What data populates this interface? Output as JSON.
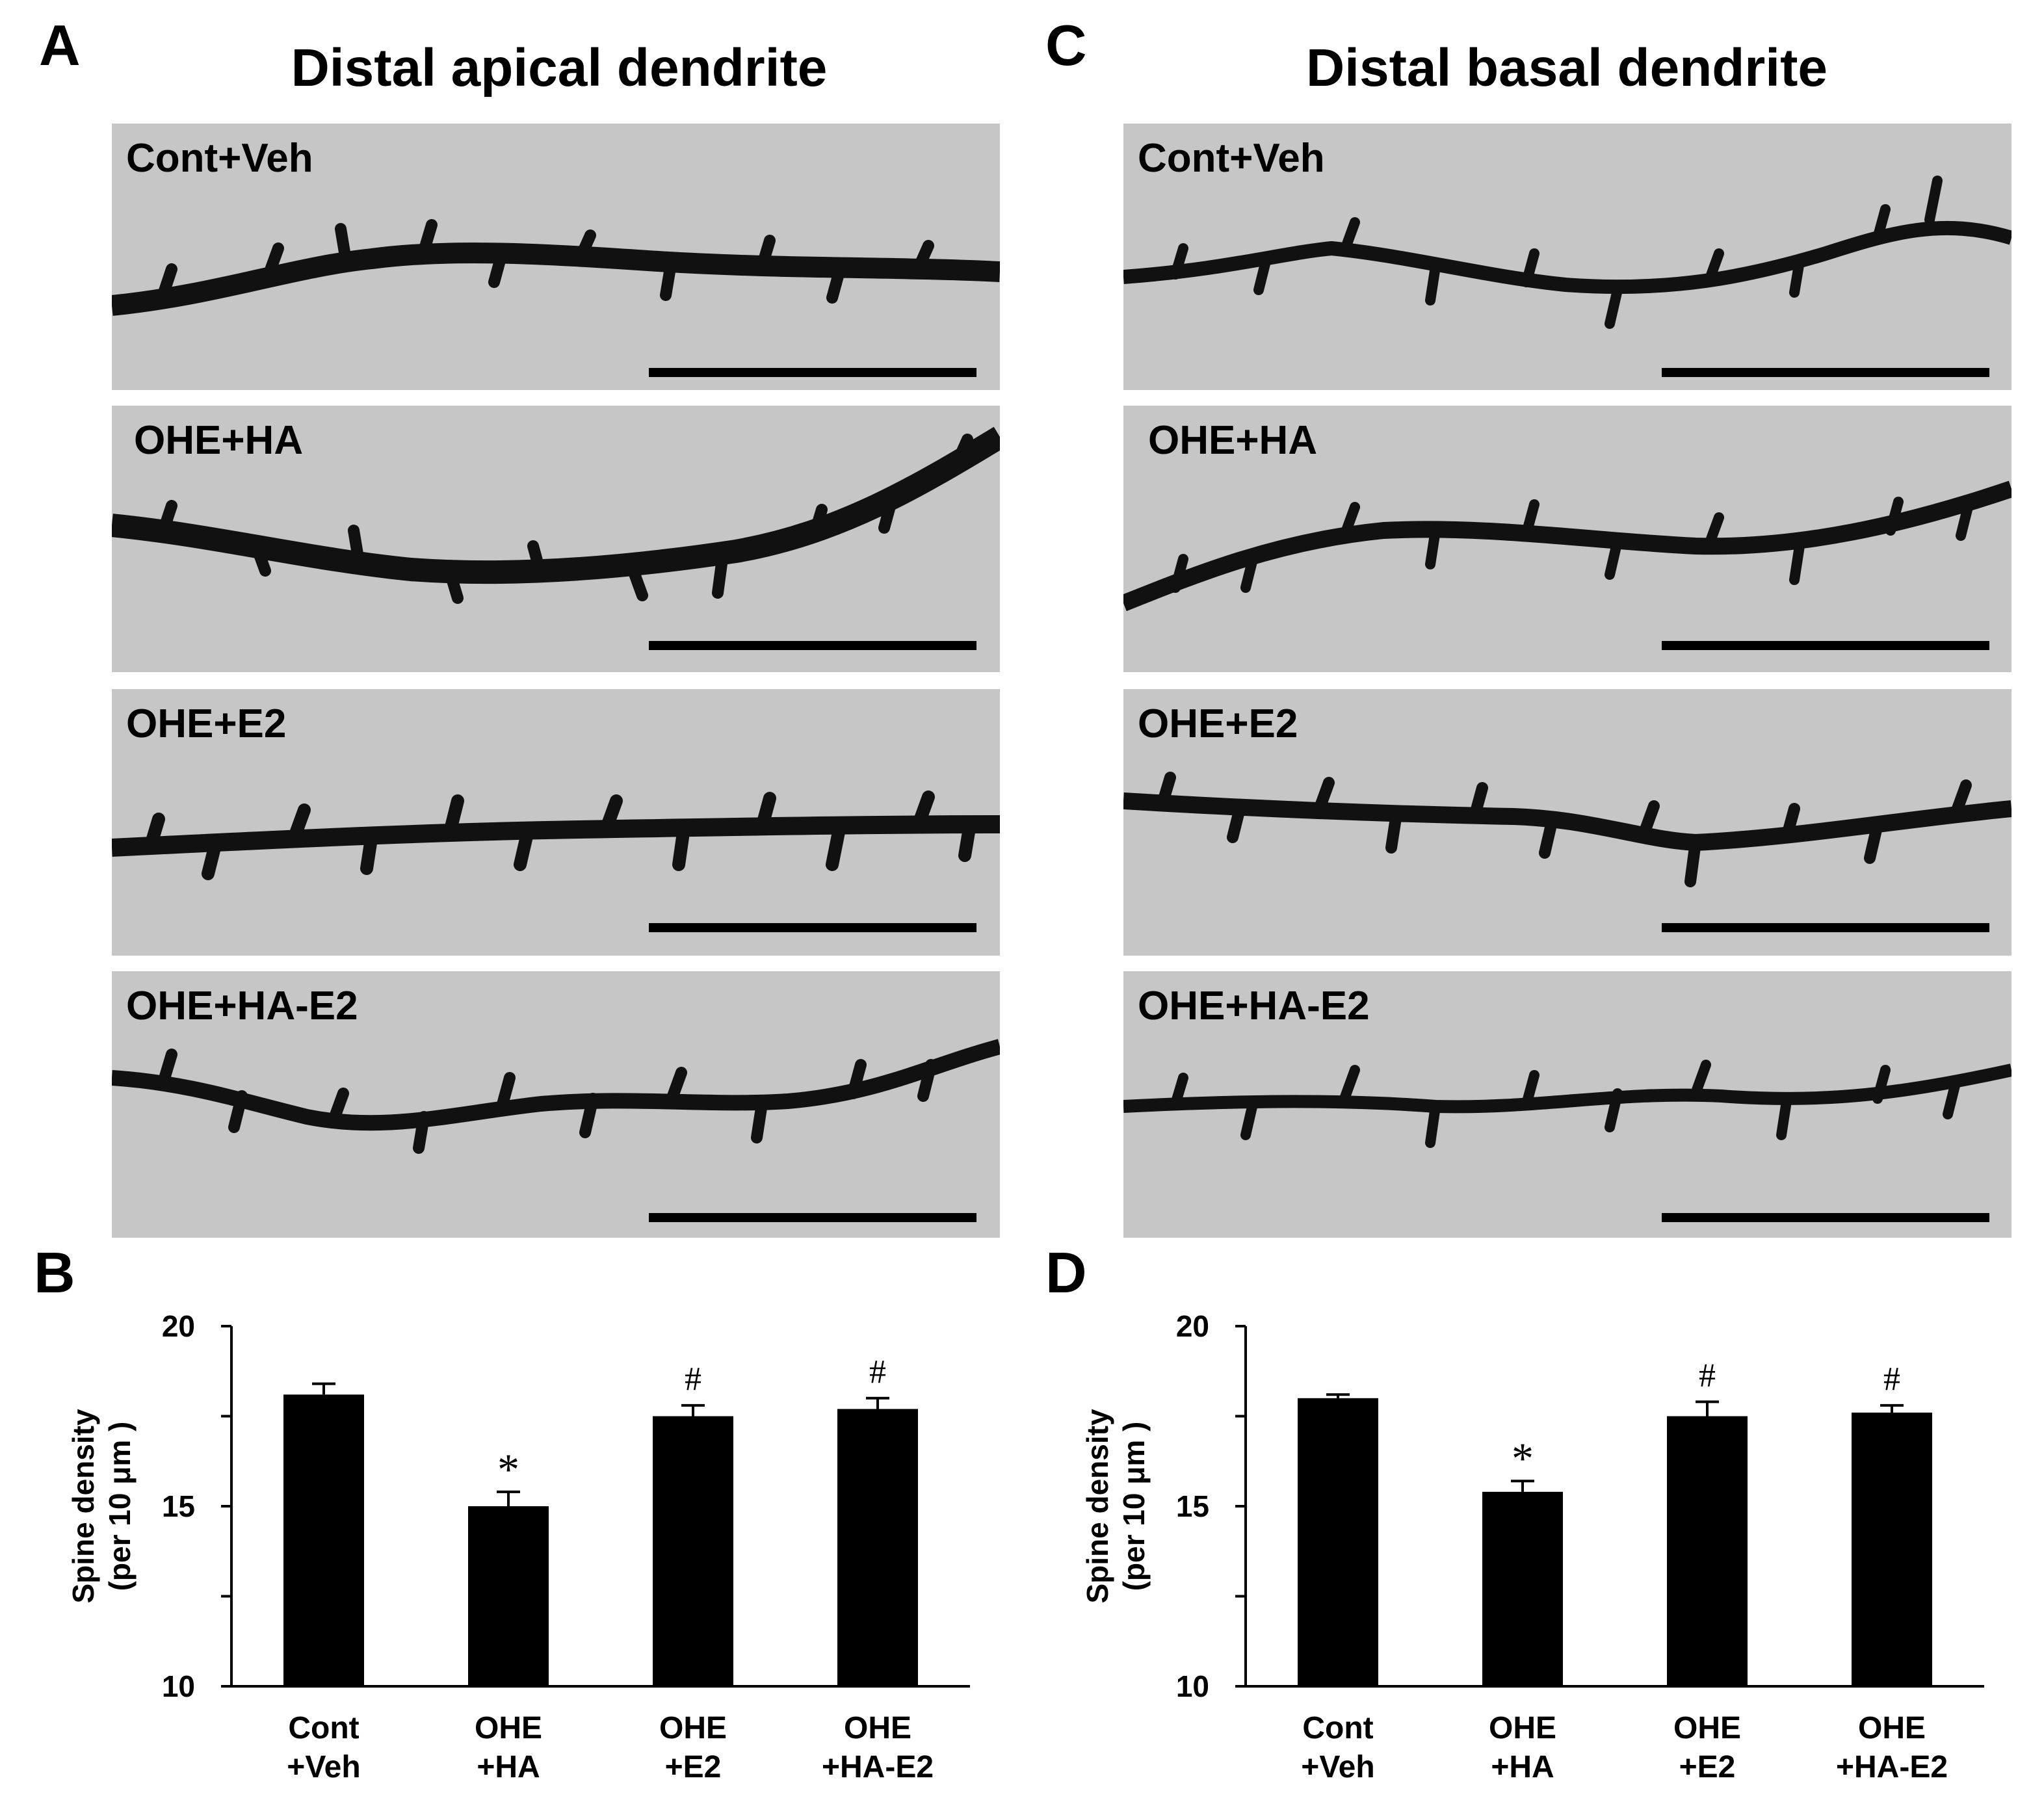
{
  "panels": [
    {
      "letter": "A",
      "title": "Distal apical dendrite",
      "images": [
        "Cont+Veh",
        "OHE+HA",
        "OHE+E2",
        "OHE+HA-E2"
      ]
    },
    {
      "letter": "C",
      "title": "Distal basal dendrite",
      "images": [
        "Cont+Veh",
        "OHE+HA",
        "OHE+E2",
        "OHE+HA-E2"
      ]
    },
    {
      "letter": "B"
    },
    {
      "letter": "D"
    }
  ],
  "chart_data": [
    {
      "panel": "B",
      "type": "bar",
      "categories": [
        [
          "Cont",
          "+Veh"
        ],
        [
          "OHE",
          "+HA"
        ],
        [
          "OHE",
          "+E2"
        ],
        [
          "OHE",
          "+HA-E2"
        ]
      ],
      "values": [
        18.1,
        15.0,
        17.5,
        17.7
      ],
      "errors": [
        0.3,
        0.4,
        0.3,
        0.3
      ],
      "annotations": [
        "",
        "*",
        "#",
        "#"
      ],
      "ylabel": [
        "Spine density",
        "(per 10 μm )"
      ],
      "ylim": [
        10,
        20
      ],
      "yticks": [
        10,
        15,
        20
      ],
      "bar_color": "#000000",
      "grid": false
    },
    {
      "panel": "D",
      "type": "bar",
      "categories": [
        [
          "Cont",
          "+Veh"
        ],
        [
          "OHE",
          "+HA"
        ],
        [
          "OHE",
          "+E2"
        ],
        [
          "OHE",
          "+HA-E2"
        ]
      ],
      "values": [
        18.0,
        15.4,
        17.5,
        17.6
      ],
      "errors": [
        0.1,
        0.3,
        0.4,
        0.2
      ],
      "annotations": [
        "",
        "*",
        "#",
        "#"
      ],
      "ylabel": [
        "Spine density",
        "(per 10 μm )"
      ],
      "ylim": [
        10,
        20
      ],
      "yticks": [
        10,
        15,
        20
      ],
      "bar_color": "#000000",
      "grid": false
    }
  ]
}
